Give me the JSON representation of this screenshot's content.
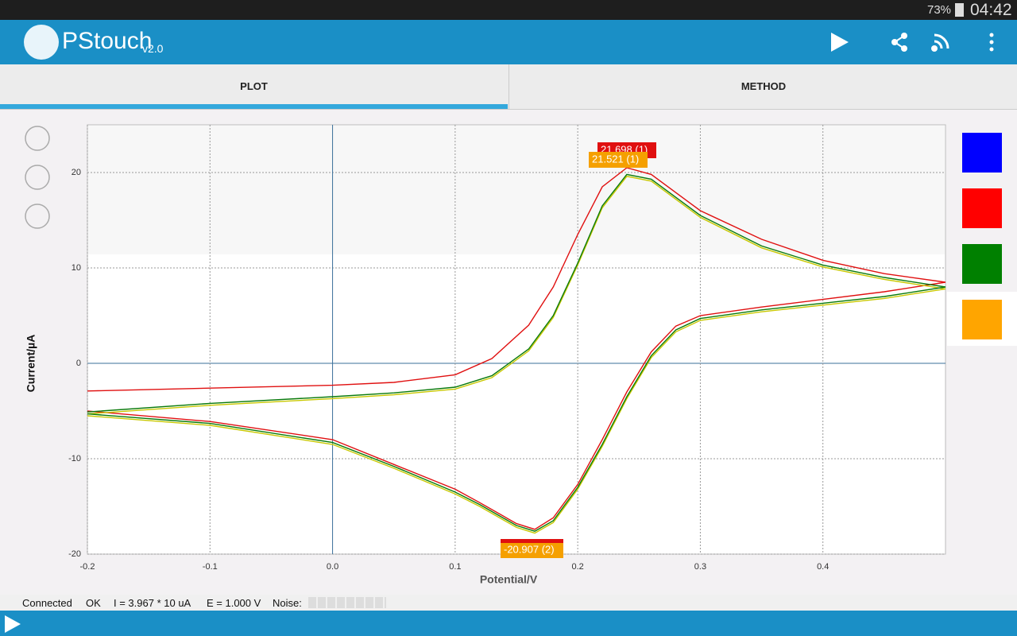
{
  "status_bar": {
    "battery": "73%",
    "time": "04:42"
  },
  "app_bar": {
    "title": "PStouch",
    "version": "v2.0"
  },
  "tabs": [
    "PLOT",
    "METHOD"
  ],
  "chart_data": {
    "type": "line",
    "x_label": "Potential/V",
    "y_label": "Current/µA",
    "xlim": [
      -0.2,
      0.5
    ],
    "ylim": [
      -20,
      25
    ],
    "xticks": [
      -0.2,
      -0.1,
      {
        "value": 0,
        "label": "0.0"
      },
      0.1,
      0.2,
      0.3,
      0.4
    ],
    "yticks": [
      -20,
      -10,
      0,
      10,
      20
    ],
    "grid": true,
    "x": [
      -0.2,
      -0.1,
      0,
      0.05,
      0.1,
      0.13,
      0.16,
      0.18,
      0.2,
      0.22,
      0.24,
      0.26,
      0.3,
      0.35,
      0.4,
      0.45,
      0.5,
      0.45,
      0.4,
      0.35,
      0.3,
      0.28,
      0.26,
      0.24,
      0.22,
      0.2,
      0.18,
      0.165,
      0.15,
      0.12,
      0.1,
      0.05,
      0,
      -0.1,
      -0.2
    ],
    "series": [
      {
        "color": "#e01010",
        "values": [
          -2.9,
          -2.6,
          -2.3,
          -2.0,
          -1.2,
          0.5,
          4,
          8,
          13.5,
          18.5,
          20.5,
          19.8,
          16.0,
          13.0,
          10.8,
          9.4,
          8.5,
          7.5,
          6.7,
          5.9,
          5.0,
          3.9,
          1.2,
          -3.0,
          -8.0,
          -12.7,
          -16.2,
          -17.4,
          -16.8,
          -14.6,
          -13.2,
          -10.6,
          -8.0,
          -6.1,
          -5.0
        ]
      },
      {
        "color": "#c8c800",
        "values": [
          -5.3,
          -4.4,
          -3.7,
          -3.3,
          -2.7,
          -1.5,
          1.3,
          4.8,
          10.3,
          16.3,
          19.6,
          19.1,
          15.3,
          12.1,
          10.1,
          8.8,
          7.8,
          6.8,
          6.1,
          5.4,
          4.5,
          3.3,
          0.6,
          -3.7,
          -8.7,
          -13.2,
          -16.7,
          -17.8,
          -17.2,
          -15.0,
          -13.7,
          -11.0,
          -8.5,
          -6.5,
          -5.5
        ]
      },
      {
        "color": "#0a7a0a",
        "values": [
          -5.1,
          -4.2,
          -3.5,
          -3.1,
          -2.5,
          -1.3,
          1.5,
          5,
          10.5,
          16.5,
          19.8,
          19.3,
          15.5,
          12.3,
          10.3,
          9.0,
          8.0,
          7.0,
          6.3,
          5.6,
          4.7,
          3.5,
          0.8,
          -3.5,
          -8.5,
          -13,
          -16.5,
          -17.6,
          -17.0,
          -14.8,
          -13.5,
          -10.8,
          -8.3,
          -6.3,
          -5.3
        ]
      }
    ],
    "annotations": [
      {
        "text": "21.698 (1)",
        "color": "#e01010"
      },
      {
        "text": "21.521 (1)",
        "color": "#f5a000"
      },
      {
        "text": "-20.907 (2)",
        "color": "#f5a000"
      }
    ],
    "swatches": [
      "#0000ff",
      "#ff0000",
      "#008000",
      "#ffa500"
    ]
  },
  "footer": {
    "connection": "Connected",
    "state": "OK",
    "current": "I = 3.967 * 10 uA",
    "potential": "E = 1.000 V",
    "noise": "Noise:"
  }
}
